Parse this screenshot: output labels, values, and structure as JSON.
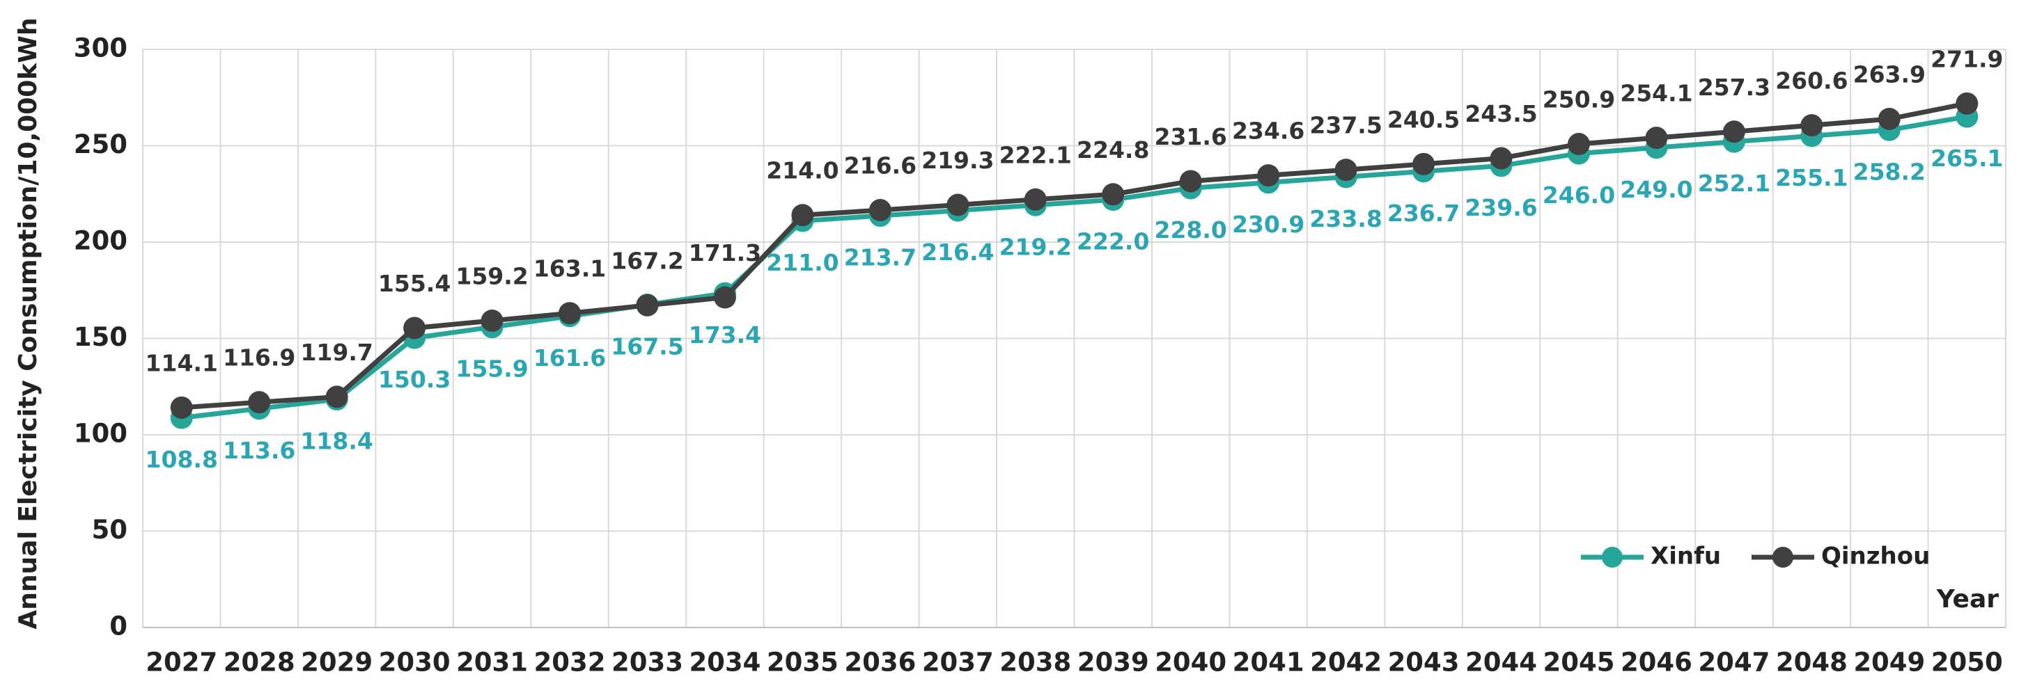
{
  "chart_data": {
    "type": "line",
    "y_label": "Annual Electricity Consumption/10,000kWh",
    "x_label": "Year",
    "categories": [
      "2027",
      "2028",
      "2029",
      "2030",
      "2031",
      "2032",
      "2033",
      "2034",
      "2035",
      "2036",
      "2037",
      "2038",
      "2039",
      "2040",
      "2041",
      "2042",
      "2043",
      "2044",
      "2045",
      "2046",
      "2047",
      "2048",
      "2049",
      "2050"
    ],
    "series": [
      {
        "name": "Xinfu",
        "color": "#26a69a",
        "label_color": "#2aa5b3",
        "label_side": "below",
        "values": [
          108.8,
          113.6,
          118.4,
          150.3,
          155.9,
          161.6,
          167.5,
          173.4,
          211.0,
          213.7,
          216.4,
          219.2,
          222.0,
          228.0,
          230.9,
          233.8,
          236.7,
          239.6,
          246.0,
          249.0,
          252.1,
          255.1,
          258.2,
          265.1
        ],
        "value_labels": [
          "108.8",
          "113.6",
          "118.4",
          "150.3",
          "155.9",
          "161.6",
          "167.5",
          "173.4",
          "211.0",
          "213.7",
          "216.4",
          "219.2",
          "222.0",
          "228.0",
          "230.9",
          "233.8",
          "236.7",
          "239.6",
          "246.0",
          "249.0",
          "252.1",
          "255.1",
          "258.2",
          "265.1"
        ]
      },
      {
        "name": "Qinzhou",
        "color": "#404040",
        "label_color": "#333333",
        "label_side": "above",
        "values": [
          114.1,
          116.9,
          119.7,
          155.4,
          159.2,
          163.1,
          167.2,
          171.3,
          214.0,
          216.6,
          219.3,
          222.1,
          224.8,
          231.6,
          234.6,
          237.5,
          240.5,
          243.5,
          250.9,
          254.1,
          257.3,
          260.6,
          263.9,
          271.9
        ],
        "value_labels": [
          "114.1",
          "116.9",
          "119.7",
          "155.4",
          "159.2",
          "163.1",
          "167.2",
          "171.3",
          "214.0",
          "216.6",
          "219.3",
          "222.1",
          "224.8",
          "231.6",
          "234.6",
          "237.5",
          "240.5",
          "243.5",
          "250.9",
          "254.1",
          "257.3",
          "260.6",
          "263.9",
          "271.9"
        ]
      }
    ],
    "ylim": [
      0,
      300
    ],
    "yticks": [
      0,
      50,
      100,
      150,
      200,
      250,
      300
    ],
    "grid": true,
    "legend": "lower right"
  }
}
